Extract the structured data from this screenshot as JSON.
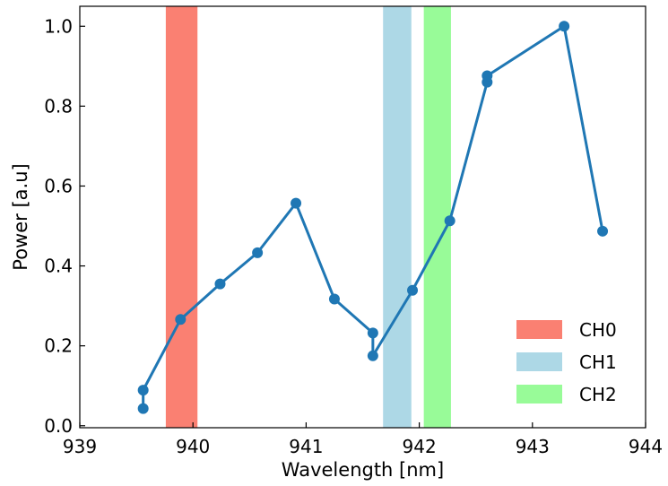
{
  "chart_data": {
    "type": "line",
    "title": "",
    "xlabel": "Wavelength [nm]",
    "ylabel": "Power [a.u]",
    "xlim": [
      939,
      944
    ],
    "ylim": [
      -0.005,
      1.05
    ],
    "x_ticks": [
      939,
      940,
      941,
      942,
      943,
      944
    ],
    "y_ticks": [
      0.0,
      0.2,
      0.4,
      0.6,
      0.8,
      1.0
    ],
    "x_tick_labels": [
      "939",
      "940",
      "941",
      "942",
      "943",
      "944"
    ],
    "y_tick_labels": [
      "0.0",
      "0.2",
      "0.4",
      "0.6",
      "0.8",
      "1.0"
    ],
    "grid": false,
    "legend_position": "bottom-right",
    "series": [
      {
        "color": "#1f77b4",
        "x": [
          939.56,
          939.56,
          939.89,
          940.24,
          940.57,
          940.91,
          941.25,
          941.59,
          941.59,
          941.94,
          942.27,
          942.6,
          942.6,
          943.28,
          943.62
        ],
        "y": [
          0.043,
          0.089,
          0.266,
          0.355,
          0.433,
          0.557,
          0.317,
          0.232,
          0.175,
          0.339,
          0.513,
          0.86,
          0.876,
          1.0,
          0.487
        ]
      }
    ],
    "bands": [
      {
        "name": "CH0",
        "x_start": 939.76,
        "x_end": 940.04,
        "color": "#fa8072"
      },
      {
        "name": "CH1",
        "x_start": 941.68,
        "x_end": 941.93,
        "color": "#add8e6"
      },
      {
        "name": "CH2",
        "x_start": 942.04,
        "x_end": 942.28,
        "color": "#98fb98"
      }
    ]
  }
}
